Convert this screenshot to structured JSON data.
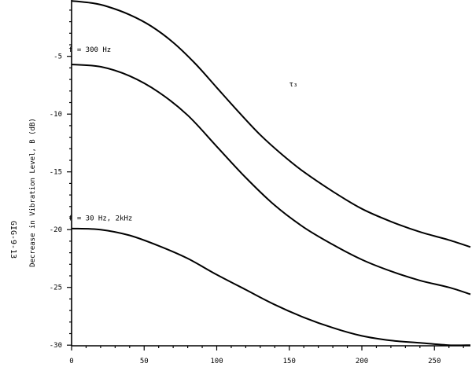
{
  "figure_id": "GIG-9-13",
  "chart_data": {
    "type": "line",
    "title": "",
    "xlabel": "",
    "ylabel": "Decrease in Vibration Level, B (dB)",
    "xlim": [
      0,
      280
    ],
    "ylim": [
      -30,
      0
    ],
    "x_ticks": [
      0,
      50,
      100,
      150,
      200,
      250
    ],
    "x_tick_labels": [
      "0",
      "50",
      "100",
      "150",
      "200",
      "250"
    ],
    "y_ticks": [
      -5,
      -10,
      -15,
      -20,
      -25,
      -30
    ],
    "y_tick_labels": [
      "-5",
      "-10",
      "-15",
      "-20",
      "-25",
      "-30"
    ],
    "grid": false,
    "series": [
      {
        "name": "",
        "x": [
          0,
          15,
          25,
          40,
          55,
          70,
          85,
          100,
          115,
          130,
          145,
          160,
          180,
          200,
          220,
          240,
          260,
          280
        ],
        "y": [
          -0.2,
          -0.4,
          -0.7,
          -1.4,
          -2.4,
          -3.8,
          -5.6,
          -7.7,
          -9.8,
          -11.8,
          -13.5,
          -15.0,
          -16.7,
          -18.2,
          -19.3,
          -20.2,
          -20.9,
          -21.5
        ]
      },
      {
        "name": "f = 300 Hz",
        "x": [
          0,
          20,
          40,
          60,
          80,
          100,
          120,
          140,
          160,
          180,
          200,
          220,
          240,
          260,
          280
        ],
        "y": [
          -5.7,
          -5.9,
          -6.7,
          -8.1,
          -10.1,
          -12.8,
          -15.5,
          -17.9,
          -19.8,
          -21.3,
          -22.6,
          -23.6,
          -24.4,
          -25.0,
          -25.6
        ]
      },
      {
        "name": "f = 30 Hz, 2kHz",
        "x": [
          0,
          20,
          40,
          60,
          80,
          100,
          120,
          140,
          160,
          180,
          200,
          220,
          240,
          260,
          280
        ],
        "y": [
          -19.9,
          -20.0,
          -20.5,
          -21.4,
          -22.5,
          -23.9,
          -25.2,
          -26.5,
          -27.6,
          -28.5,
          -29.2,
          -29.6,
          -29.8,
          -30.0,
          -30.0
        ]
      }
    ],
    "annotations": [
      {
        "text": "f = 300 Hz",
        "x": 0,
        "y": -4.6
      },
      {
        "text": "f = 30 Hz, 2kHz",
        "x": 0,
        "y": -19.2
      },
      {
        "text": "τ₃",
        "x": 152,
        "y": -7.6
      }
    ]
  }
}
